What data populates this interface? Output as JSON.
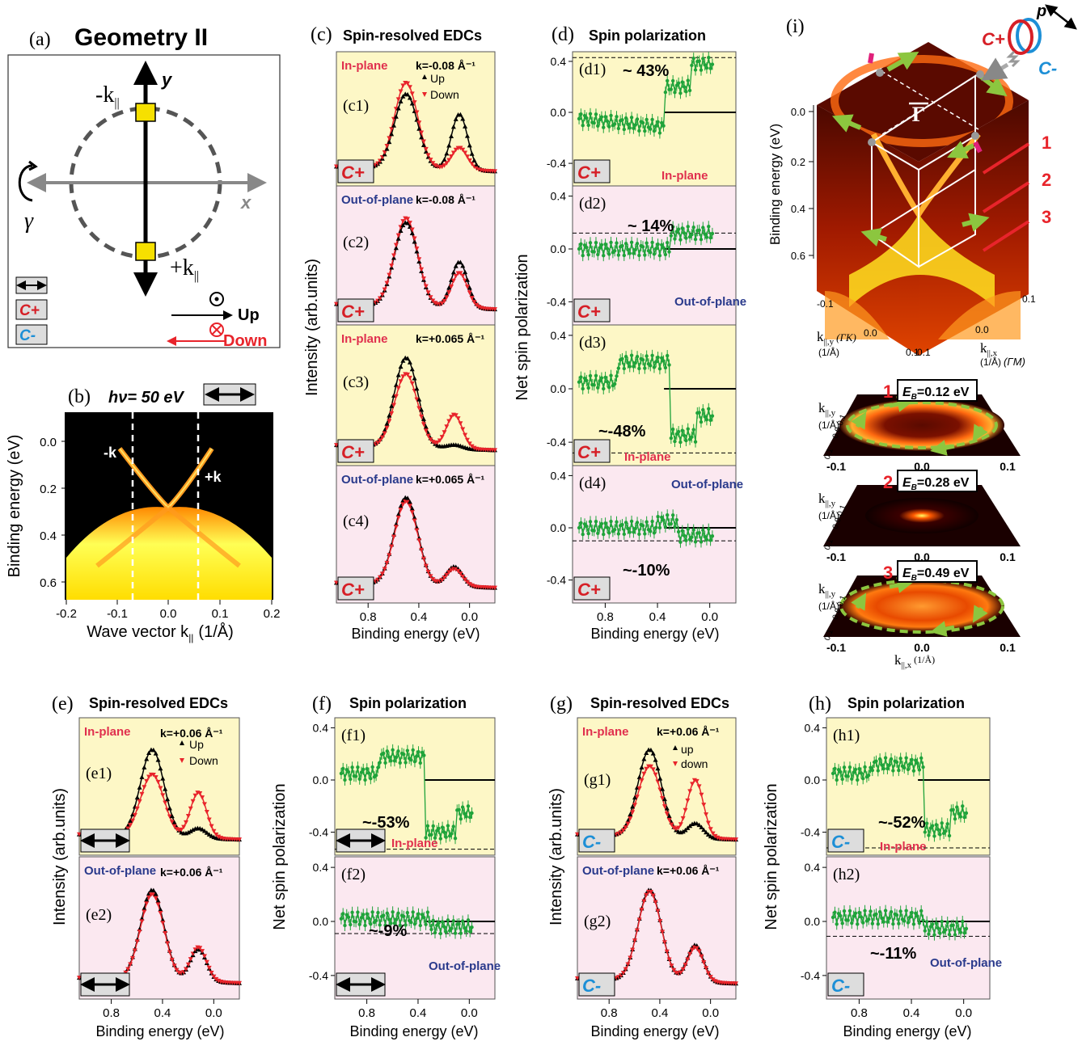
{
  "colors": {
    "yellow_panel": "#fdf7c6",
    "pink_panel": "#fbe8f0",
    "up": "#000000",
    "down": "#e8242b",
    "polarization": "#1fa33a",
    "inplane_label": "#e0304e",
    "outofplane_label": "#2a3a8c",
    "cplus": "#d61f26",
    "cminus": "#1d8fd6",
    "arpes_dark": "#000000",
    "arpes_bright": "#ffff33"
  },
  "panel_a": {
    "letter": "(a)",
    "title": "Geometry II",
    "y_axis": "y",
    "x_axis": "x",
    "minus_k": "-k",
    "plus_k": "+k",
    "subscript": "||",
    "gamma": "γ",
    "up_label": "Up",
    "down_label": "Down",
    "cplus": "C+",
    "cminus": "C-"
  },
  "panel_b": {
    "letter": "(b)",
    "hv": "hν= 50 eV",
    "ylabel": "Binding energy  (eV)",
    "xlabel": "Wave vector k",
    "xlabel_sub": "||",
    "xlabel_unit": "(1/Å)",
    "minus_k": "-k",
    "plus_k": "+k",
    "xticks": [
      "-0.2",
      "-0.1",
      "0.0",
      "0.1",
      "0.2"
    ],
    "yticks": [
      "0.0",
      "0.2",
      "0.4",
      "0.6"
    ]
  },
  "panel_c": {
    "letter": "(c)",
    "title": "Spin-resolved EDCs",
    "ylabel": "Intensity (arb.units)",
    "xlabel": "Binding energy  (eV)",
    "xticks": [
      "0.8",
      "0.4",
      "0.0"
    ],
    "legend_up": "Up",
    "legend_down": "Down",
    "subpanels": [
      {
        "id": "(c1)",
        "mode": "In-plane",
        "k": "k=-0.08 Å⁻¹",
        "pol": "C+"
      },
      {
        "id": "(c2)",
        "mode": "Out-of-plane",
        "k": "k=-0.08 Å⁻¹",
        "pol": "C+"
      },
      {
        "id": "(c3)",
        "mode": "In-plane",
        "k": "k=+0.065 Å⁻¹",
        "pol": "C+"
      },
      {
        "id": "(c4)",
        "mode": "Out-of-plane",
        "k": "k=+0.065 Å⁻¹",
        "pol": "C+"
      }
    ]
  },
  "panel_d": {
    "letter": "(d)",
    "title": "Spin polarization",
    "ylabel": "Net spin polarization",
    "xlabel": "Binding energy  (eV)",
    "xticks": [
      "0.8",
      "0.4",
      "0.0"
    ],
    "yticks": [
      "0.4",
      "0.0",
      "-0.4"
    ],
    "subpanels": [
      {
        "id": "(d1)",
        "mode": "In-plane",
        "value": "~ 43%",
        "pol": "C+"
      },
      {
        "id": "(d2)",
        "mode": "Out-of-plane",
        "value": "~ 14%",
        "pol": "C+"
      },
      {
        "id": "(d3)",
        "mode": "In-plane",
        "value": "~-48%",
        "pol": "C+"
      },
      {
        "id": "(d4)",
        "mode": "Out-of-plane",
        "value": "~-10%",
        "pol": "C+"
      }
    ]
  },
  "panel_e": {
    "letter": "(e)",
    "title": "Spin-resolved EDCs",
    "ylabel": "Intensity (arb.units)",
    "xlabel": "Binding energy  (eV)",
    "xticks": [
      "0.8",
      "0.4",
      "0.0"
    ],
    "legend_up": "Up",
    "legend_down": "Down",
    "subpanels": [
      {
        "id": "(e1)",
        "mode": "In-plane",
        "k": "k=+0.06 Å⁻¹"
      },
      {
        "id": "(e2)",
        "mode": "Out-of-plane",
        "k": "k=+0.06 Å⁻¹"
      }
    ]
  },
  "panel_f": {
    "letter": "(f)",
    "title": "Spin polarization",
    "ylabel": "Net spin polarization",
    "xlabel": "Binding energy  (eV)",
    "xticks": [
      "0.8",
      "0.4",
      "0.0"
    ],
    "yticks": [
      "0.4",
      "0.0",
      "-0.4"
    ],
    "subpanels": [
      {
        "id": "(f1)",
        "mode": "In-plane",
        "value": "~-53%"
      },
      {
        "id": "(f2)",
        "mode": "Out-of-plane",
        "value": "~-9%"
      }
    ]
  },
  "panel_g": {
    "letter": "(g)",
    "title": "Spin-resolved EDCs",
    "ylabel": "Intensity (arb.units)",
    "xlabel": "Binding energy  (eV)",
    "xticks": [
      "0.8",
      "0.4",
      "0.0"
    ],
    "legend_up": "up",
    "legend_down": "down",
    "subpanels": [
      {
        "id": "(g1)",
        "mode": "In-plane",
        "k": "k=+0.06 Å⁻¹",
        "pol": "C-"
      },
      {
        "id": "(g2)",
        "mode": "Out-of-plane",
        "k": "k=+0.06 Å⁻¹",
        "pol": "C-"
      }
    ]
  },
  "panel_h": {
    "letter": "(h)",
    "title": "Spin polarization",
    "ylabel": "Net spin polarization",
    "xlabel": "Binding energy  (eV)",
    "xticks": [
      "0.8",
      "0.4",
      "0.0"
    ],
    "yticks": [
      "0.4",
      "0.0",
      "-0.4"
    ],
    "subpanels": [
      {
        "id": "(h1)",
        "mode": "In-plane",
        "value": "~-52%",
        "pol": "C-"
      },
      {
        "id": "(h2)",
        "mode": "Out-of-plane",
        "value": "~-11%",
        "pol": "C-"
      }
    ]
  },
  "panel_i": {
    "letter": "(i)",
    "ylabel": "Binding energy  (eV)",
    "yticks": [
      "0.0",
      "0.2",
      "0.4",
      "0.6"
    ],
    "gamma_bar": "Γ",
    "p_label": "p",
    "cplus": "C+",
    "cminus": "C-",
    "cut_numbers": [
      "1",
      "2",
      "3"
    ],
    "axis_ky": "k",
    "axis_ky_sub": "||,y",
    "axis_ky_unit": "(1/Å)",
    "axis_ky_dir": "(ΓK)",
    "axis_kx": "k",
    "axis_kx_sub": "||,x",
    "axis_kx_unit": "(1/Å)",
    "axis_kx_dir": "(ΓM)",
    "cube_ticks": [
      "-0.1",
      "0.0",
      "0.1",
      "-0.1",
      "0.0",
      "0.1"
    ],
    "slices": [
      {
        "num": "1",
        "label": "E",
        "sub": "B",
        "value": "=0.12 eV"
      },
      {
        "num": "2",
        "label": "E",
        "sub": "B",
        "value": "=0.28 eV"
      },
      {
        "num": "3",
        "label": "E",
        "sub": "B",
        "value": "=0.49 eV"
      }
    ],
    "slice_xticks": [
      "-0.1",
      "0.0",
      "0.1"
    ],
    "slice_yticks": [
      "-0.1",
      "0.0",
      "0.1"
    ],
    "slice_xlabel": "k",
    "slice_xlabel_sub": "||,x",
    "slice_xlabel_unit": "(1/Å)",
    "slice_ylabel": "k",
    "slice_ylabel_sub": "||,y",
    "slice_ylabel_unit": "(1/Å)"
  }
}
